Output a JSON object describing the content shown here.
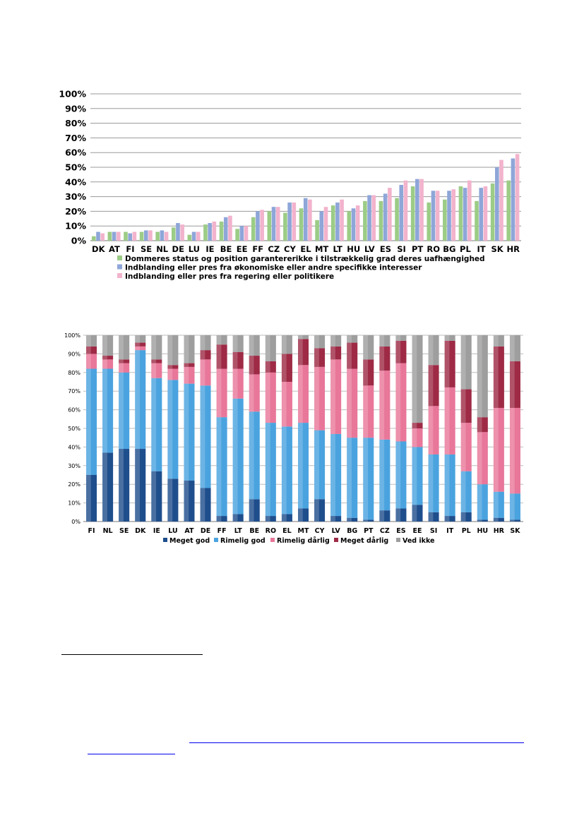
{
  "chart_data": [
    {
      "type": "bar",
      "categories": [
        "DK",
        "AT",
        "FI",
        "SE",
        "NL",
        "DE",
        "LU",
        "IE",
        "BE",
        "EE",
        "FF",
        "CZ",
        "CY",
        "EL",
        "MT",
        "LT",
        "HU",
        "LV",
        "ES",
        "SI",
        "PT",
        "RO",
        "BG",
        "PL",
        "IT",
        "SK",
        "HR"
      ],
      "series": [
        {
          "name": "Dommeres status og position garantererikke i tilstrækkelig grad deres uafhængighed",
          "color": "#9ccc86",
          "values": [
            3,
            6,
            6,
            6,
            6,
            9,
            4,
            11,
            13,
            8,
            16,
            20,
            19,
            22,
            14,
            24,
            20,
            27,
            27,
            29,
            37,
            26,
            28,
            37,
            27,
            39,
            41
          ]
        },
        {
          "name": "Indblanding eller pres fra økonomiske eller andre specifikke interesser",
          "color": "#8ea6d8",
          "values": [
            6,
            6,
            5,
            7,
            7,
            12,
            6,
            12,
            16,
            10,
            20,
            23,
            26,
            29,
            20,
            26,
            22,
            31,
            32,
            38,
            42,
            34,
            34,
            36,
            36,
            50,
            56
          ]
        },
        {
          "name": "Indblanding eller pres fra regering eller politikere",
          "color": "#f2b3cc",
          "values": [
            5,
            6,
            6,
            7,
            6,
            11,
            6,
            13,
            17,
            10,
            21,
            23,
            26,
            28,
            23,
            28,
            24,
            31,
            36,
            41,
            42,
            34,
            35,
            41,
            37,
            55,
            59
          ]
        }
      ],
      "ylim": [
        0,
        100
      ],
      "yticks": [
        "0%",
        "10%",
        "20%",
        "30%",
        "40%",
        "50%",
        "60%",
        "70%",
        "80%",
        "90%",
        "100%"
      ],
      "grid": true,
      "legend": "bottom"
    },
    {
      "type": "bar",
      "stacked": true,
      "categories": [
        "FI",
        "NL",
        "SE",
        "DK",
        "IE",
        "LU",
        "AT",
        "DE",
        "FF",
        "LT",
        "BE",
        "RO",
        "EL",
        "MT",
        "CY",
        "LV",
        "BG",
        "PT",
        "CZ",
        "ES",
        "EE",
        "SI",
        "IT",
        "PL",
        "HU",
        "HR",
        "SK"
      ],
      "series": [
        {
          "name": "Meget god",
          "color": "#1f4e8c",
          "values": [
            25,
            37,
            39,
            39,
            27,
            23,
            22,
            18,
            3,
            4,
            12,
            3,
            4,
            7,
            12,
            3,
            2,
            1,
            6,
            7,
            9,
            5,
            3,
            5,
            1,
            2,
            1
          ]
        },
        {
          "name": "Rimelig god",
          "color": "#4aa3df",
          "values": [
            57,
            45,
            41,
            53,
            50,
            53,
            52,
            55,
            53,
            62,
            47,
            50,
            47,
            46,
            37,
            44,
            43,
            44,
            38,
            36,
            31,
            31,
            33,
            22,
            19,
            14,
            14
          ]
        },
        {
          "name": "Rimelig dårlig",
          "color": "#e8779a",
          "values": [
            8,
            5,
            5,
            2,
            8,
            6,
            9,
            14,
            26,
            16,
            20,
            27,
            24,
            31,
            34,
            40,
            37,
            28,
            37,
            42,
            10,
            26,
            36,
            26,
            28,
            45,
            46
          ]
        },
        {
          "name": "Meget dårlig",
          "color": "#9e2a45",
          "values": [
            4,
            2,
            2,
            2,
            2,
            2,
            2,
            5,
            13,
            9,
            10,
            6,
            15,
            14,
            10,
            7,
            14,
            14,
            13,
            12,
            3,
            22,
            25,
            18,
            8,
            33,
            25
          ]
        },
        {
          "name": "Ved ikke",
          "color": "#9e9e9e",
          "values": [
            6,
            11,
            13,
            4,
            13,
            16,
            15,
            8,
            5,
            9,
            11,
            14,
            10,
            2,
            7,
            6,
            4,
            13,
            6,
            3,
            47,
            16,
            3,
            29,
            44,
            6,
            14
          ]
        }
      ],
      "ylim": [
        0,
        100
      ],
      "yticks": [
        "0%",
        "10%",
        "20%",
        "30%",
        "40%",
        "50%",
        "60%",
        "70%",
        "80%",
        "90%",
        "100%"
      ],
      "grid": true,
      "legend": "bottom"
    }
  ]
}
